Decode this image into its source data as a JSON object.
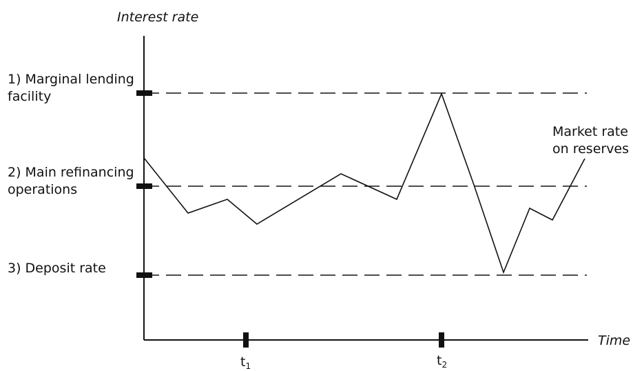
{
  "labels": {
    "y_axis": "Interest rate",
    "x_axis": "Time",
    "marginal_line1": "1) Marginal lending",
    "marginal_line2": "facility",
    "main_line1": "2) Main refinancing",
    "main_line2": "operations",
    "deposit": "3) Deposit rate",
    "market_line1": "Market rate",
    "market_line2": "on reserves",
    "t1_base": "t",
    "t1_sub": "1",
    "t2_base": "t",
    "t2_sub": "2"
  },
  "colors": {
    "line": "#111111"
  }
}
